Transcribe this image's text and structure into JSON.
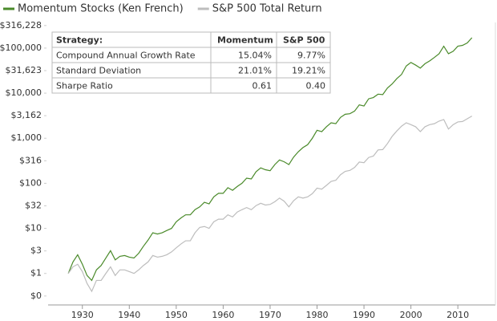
{
  "chart_data": {
    "type": "line",
    "log_y": true,
    "grid": false,
    "legend": "top",
    "x": [
      1927,
      1928,
      1929,
      1930,
      1931,
      1932,
      1933,
      1934,
      1935,
      1936,
      1937,
      1938,
      1939,
      1940,
      1941,
      1942,
      1943,
      1944,
      1945,
      1946,
      1947,
      1948,
      1949,
      1950,
      1951,
      1952,
      1953,
      1954,
      1955,
      1956,
      1957,
      1958,
      1959,
      1960,
      1961,
      1962,
      1963,
      1964,
      1965,
      1966,
      1967,
      1968,
      1969,
      1970,
      1971,
      1972,
      1973,
      1974,
      1975,
      1976,
      1977,
      1978,
      1979,
      1980,
      1981,
      1982,
      1983,
      1984,
      1985,
      1986,
      1987,
      1988,
      1989,
      1990,
      1991,
      1992,
      1993,
      1994,
      1995,
      1996,
      1997,
      1998,
      1999,
      2000,
      2001,
      2002,
      2003,
      2004,
      2005,
      2006,
      2007,
      2008,
      2009,
      2010,
      2011,
      2012,
      2013
    ],
    "series": [
      {
        "name": "Momentum Stocks (Ken French)",
        "color": "#4a8a2a",
        "values": [
          1,
          1.8,
          2.6,
          1.6,
          0.9,
          0.7,
          1.2,
          1.5,
          2.2,
          3.2,
          2.0,
          2.4,
          2.5,
          2.3,
          2.2,
          2.8,
          4,
          5.5,
          8,
          7.5,
          8,
          9,
          10,
          14,
          17,
          20,
          20,
          26,
          30,
          38,
          35,
          50,
          60,
          60,
          80,
          70,
          85,
          100,
          130,
          125,
          180,
          220,
          200,
          190,
          260,
          330,
          300,
          260,
          380,
          500,
          620,
          720,
          1000,
          1500,
          1400,
          1800,
          2200,
          2100,
          2900,
          3400,
          3500,
          4000,
          5500,
          5200,
          7500,
          8000,
          9500,
          9300,
          13000,
          16000,
          21000,
          26000,
          40000,
          48000,
          42000,
          36000,
          45000,
          52000,
          62000,
          75000,
          110000,
          75000,
          85000,
          110000,
          115000,
          130000,
          170000
        ]
      },
      {
        "name": "S&P 500 Total Return",
        "color": "#bdbdbd",
        "values": [
          1,
          1.4,
          1.6,
          1.1,
          0.6,
          0.4,
          0.7,
          0.7,
          1.0,
          1.4,
          0.9,
          1.2,
          1.2,
          1.1,
          1.0,
          1.2,
          1.5,
          1.8,
          2.5,
          2.3,
          2.4,
          2.6,
          3.0,
          3.7,
          4.5,
          5.3,
          5.3,
          8,
          10.5,
          11,
          10,
          14,
          16,
          16,
          20,
          18,
          23,
          26,
          29,
          26,
          32,
          36,
          33,
          34,
          39,
          47,
          40,
          30,
          41,
          50,
          47,
          50,
          59,
          78,
          74,
          90,
          110,
          117,
          155,
          184,
          193,
          225,
          296,
          287,
          374,
          402,
          550,
          560,
          760,
          1100,
          1450,
          1850,
          2200,
          2000,
          1800,
          1400,
          1800,
          2000,
          2100,
          2400,
          2600,
          1600,
          2000,
          2300,
          2350,
          2700,
          3100
        ]
      }
    ],
    "xlim": [
      1922.7,
      2018
    ],
    "xticks": [
      1930,
      1940,
      1950,
      1960,
      1970,
      1980,
      1990,
      2000,
      2010
    ],
    "ylim": [
      0.2,
      370000
    ],
    "yticks": [
      {
        "value": 0.316,
        "label": "$0"
      },
      {
        "value": 1,
        "label": "$1"
      },
      {
        "value": 3.162,
        "label": "$3"
      },
      {
        "value": 10,
        "label": "$10"
      },
      {
        "value": 31.623,
        "label": "$32"
      },
      {
        "value": 100,
        "label": "$100"
      },
      {
        "value": 316.228,
        "label": "$316"
      },
      {
        "value": 1000,
        "label": "$1,000"
      },
      {
        "value": 3162.28,
        "label": "$3,162"
      },
      {
        "value": 10000,
        "label": "$10,000"
      },
      {
        "value": 31623,
        "label": "$31,623"
      },
      {
        "value": 100000,
        "label": "$100,000"
      },
      {
        "value": 316228,
        "label": "$316,228"
      }
    ],
    "table": {
      "columns": [
        "Strategy:",
        "Momentum",
        "S&P 500"
      ],
      "rows": [
        [
          "Compound Annual Growth Rate",
          "15.04%",
          "9.77%"
        ],
        [
          "Standard Deviation",
          "21.01%",
          "19.21%"
        ],
        [
          "Sharpe Ratio",
          "0.61",
          "0.40"
        ]
      ]
    }
  }
}
